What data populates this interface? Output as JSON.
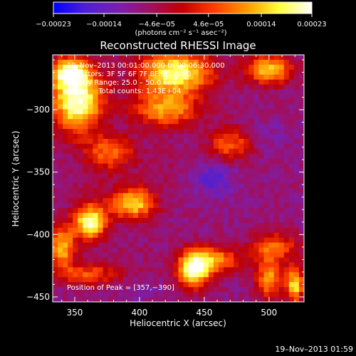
{
  "chart_data": {
    "type": "heatmap",
    "title": "Reconstructed RHESSI Image",
    "xlabel": "Heliocentric X (arcsec)",
    "ylabel": "Heliocentric Y (arcsec)",
    "xlim": [
      333,
      527
    ],
    "ylim": [
      -454,
      -256
    ],
    "x_ticks": [
      350,
      400,
      450,
      500
    ],
    "y_ticks": [
      -300,
      -350,
      -400,
      -450
    ],
    "x_tick_labels": [
      "350",
      "400",
      "450",
      "500"
    ],
    "y_tick_labels": [
      "−300",
      "−350",
      "−400",
      "−450"
    ],
    "colorbar": {
      "min": -0.00023,
      "max": 0.00023,
      "tick_values": [
        -0.00023,
        -0.00014,
        -4.6e-05,
        4.6e-05,
        0.00014,
        0.00023
      ],
      "tick_labels": [
        "−0.00023",
        "−0.00014",
        "−4.6e−05",
        "4.6e−05",
        "0.00014",
        "0.00023"
      ],
      "unit_label": "(photons cm⁻² s⁻¹ asec⁻²)",
      "colors": [
        "#0000ff",
        "#5020d0",
        "#7a1fb0",
        "#a01060",
        "#c00000",
        "#ff4000",
        "#ff9a00",
        "#ffff40",
        "#ffffff"
      ]
    },
    "annotations": [
      "19–Nov–2013 00:01:00.000 to 00:06:30.000",
      "Detectors: 3F 5F 6F 7F 8F 9F, Att 0",
      "Energy Range: 25.0 – 50.0 keV",
      "Clean     Total counts: 1.43E+04"
    ],
    "peak_label": "Position of Peak = [357,−390]",
    "peak_position": [
      357,
      -390
    ],
    "grid": false,
    "blobs": [
      {
        "x": 352,
        "y": -292,
        "value": 0.00023,
        "sx": 14,
        "sy": 18
      },
      {
        "x": 345,
        "y": -270,
        "value": 0.00015,
        "sx": 10,
        "sy": 8
      },
      {
        "x": 362,
        "y": -390,
        "value": 0.00021,
        "sx": 9,
        "sy": 10
      },
      {
        "x": 340,
        "y": -410,
        "value": 0.00014,
        "sx": 7,
        "sy": 12
      },
      {
        "x": 428,
        "y": -270,
        "value": 0.0002,
        "sx": 20,
        "sy": 12
      },
      {
        "x": 420,
        "y": -300,
        "value": 0.00012,
        "sx": 18,
        "sy": 10
      },
      {
        "x": 500,
        "y": -268,
        "value": 0.00016,
        "sx": 12,
        "sy": 8
      },
      {
        "x": 395,
        "y": -375,
        "value": 0.00016,
        "sx": 12,
        "sy": 9
      },
      {
        "x": 377,
        "y": -335,
        "value": 8e-05,
        "sx": 14,
        "sy": 10
      },
      {
        "x": 442,
        "y": -428,
        "value": 0.00022,
        "sx": 9,
        "sy": 10
      },
      {
        "x": 500,
        "y": -435,
        "value": 0.00011,
        "sx": 7,
        "sy": 12
      },
      {
        "x": 520,
        "y": -440,
        "value": 0.00016,
        "sx": 5,
        "sy": 10
      },
      {
        "x": 505,
        "y": -410,
        "value": 8e-05,
        "sx": 12,
        "sy": 8
      },
      {
        "x": 470,
        "y": -328,
        "value": 7e-05,
        "sx": 12,
        "sy": 10
      },
      {
        "x": 460,
        "y": -420,
        "value": 9e-05,
        "sx": 14,
        "sy": 8
      },
      {
        "x": 360,
        "y": -432,
        "value": 7e-05,
        "sx": 16,
        "sy": 6
      },
      {
        "x": 458,
        "y": -355,
        "value": -0.00017,
        "sx": 11,
        "sy": 10
      },
      {
        "x": 500,
        "y": -320,
        "value": -0.00011,
        "sx": 9,
        "sy": 8
      },
      {
        "x": 490,
        "y": -340,
        "value": -8e-05,
        "sx": 12,
        "sy": 12
      },
      {
        "x": 400,
        "y": -445,
        "value": -0.00012,
        "sx": 9,
        "sy": 5
      },
      {
        "x": 395,
        "y": -420,
        "value": -6e-05,
        "sx": 15,
        "sy": 10
      },
      {
        "x": 418,
        "y": -345,
        "value": -5e-05,
        "sx": 12,
        "sy": 12
      },
      {
        "x": 363,
        "y": -360,
        "value": -4e-05,
        "sx": 12,
        "sy": 8
      }
    ]
  },
  "footer": {
    "timestamp": "19–Nov–2013 01:59"
  }
}
